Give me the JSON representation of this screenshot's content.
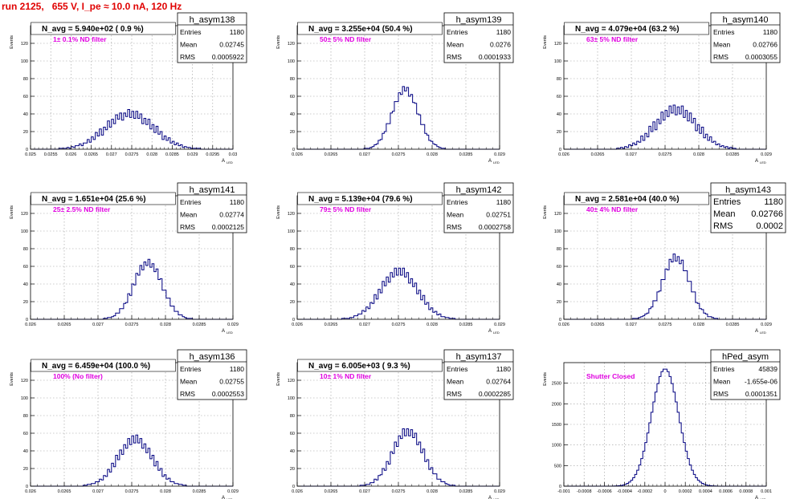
{
  "page_title": "run 2125,   655 V, I_pe ≈ 10.0 nA, 120 Hz",
  "colors": {
    "title": "#e00000",
    "annotation": "#e000e0",
    "histogram": "#000080",
    "axis": "#000000",
    "grid": "#9a9a9a"
  },
  "stat_labels": {
    "entries": "Entries",
    "mean": "Mean",
    "rms": "RMS"
  },
  "y_axis_label": "Events",
  "x_axis_label": "A",
  "x_axis_label_sub": "LED",
  "chart_data": [
    {
      "type": "bar",
      "name": "h_asym138",
      "header": "N_avg = 5.940e+02 ( 0.9 %)",
      "note": "1± 0.1% ND filter",
      "stats": {
        "entries": "1180",
        "mean": "0.02745",
        "rms": "0.0005922"
      },
      "xlim": [
        0.025,
        0.03
      ],
      "ylim": [
        0,
        140
      ],
      "x_ticks": [
        0.025,
        0.0255,
        0.026,
        0.0265,
        0.027,
        0.0275,
        0.028,
        0.0285,
        0.029,
        0.0295,
        0.03
      ],
      "x_tick_labels": [
        "0.025",
        "0.0255",
        "0.026",
        "0.0265",
        "0.027",
        "0.0275",
        "0.028",
        "0.0285",
        "0.029",
        "0.0295",
        "0.03"
      ],
      "y_ticks": [
        0,
        20,
        40,
        60,
        80,
        100,
        120
      ],
      "mean": 0.02745,
      "rms": 0.0005922,
      "peak": 40,
      "wiggle": [
        3,
        -4,
        5,
        -2,
        4,
        -5,
        2,
        -3,
        5,
        -4
      ]
    },
    {
      "type": "bar",
      "name": "h_asym139",
      "header": "N_avg = 3.255e+04 (50.4 %)",
      "note": "50± 5% ND filter",
      "stats": {
        "entries": "1180",
        "mean": "0.0276",
        "rms": "0.0001933"
      },
      "xlim": [
        0.026,
        0.029
      ],
      "ylim": [
        0,
        140
      ],
      "x_ticks": [
        0.026,
        0.0265,
        0.027,
        0.0275,
        0.028,
        0.0285,
        0.029
      ],
      "x_tick_labels": [
        "0.026",
        "0.0265",
        "0.027",
        "0.0275",
        "0.028",
        "0.0285",
        "0.029"
      ],
      "y_ticks": [
        0,
        20,
        40,
        60,
        80,
        100,
        120
      ],
      "mean": 0.0276,
      "rms": 0.0001933,
      "peak": 68,
      "wiggle": [
        2,
        -3,
        4,
        -2,
        3,
        -4,
        2,
        -2,
        3,
        -3
      ]
    },
    {
      "type": "bar",
      "name": "h_asym140",
      "header": "N_avg = 4.079e+04 (63.2 %)",
      "note": "63± 5% ND filter",
      "stats": {
        "entries": "1180",
        "mean": "0.02766",
        "rms": "0.0003055"
      },
      "xlim": [
        0.026,
        0.029
      ],
      "ylim": [
        0,
        140
      ],
      "x_ticks": [
        0.026,
        0.0265,
        0.027,
        0.0275,
        0.028,
        0.0285,
        0.029
      ],
      "x_tick_labels": [
        "0.026",
        "0.0265",
        "0.027",
        "0.0275",
        "0.028",
        "0.0285",
        "0.029"
      ],
      "y_ticks": [
        0,
        20,
        40,
        60,
        80,
        100,
        120
      ],
      "mean": 0.02766,
      "rms": 0.0003055,
      "peak": 45,
      "wiggle": [
        4,
        -5,
        6,
        -3,
        5,
        -6,
        3,
        -4,
        6,
        -5
      ]
    },
    {
      "type": "bar",
      "name": "h_asym141",
      "header": "N_avg = 1.651e+04 (25.6 %)",
      "note": "25± 2.5% ND filter",
      "stats": {
        "entries": "1180",
        "mean": "0.02774",
        "rms": "0.0002125"
      },
      "xlim": [
        0.026,
        0.029
      ],
      "ylim": [
        0,
        140
      ],
      "x_ticks": [
        0.026,
        0.0265,
        0.027,
        0.0275,
        0.028,
        0.0285,
        0.029
      ],
      "x_tick_labels": [
        "0.026",
        "0.0265",
        "0.027",
        "0.0275",
        "0.028",
        "0.0285",
        "0.029"
      ],
      "y_ticks": [
        0,
        20,
        40,
        60,
        80,
        100,
        120
      ],
      "mean": 0.02774,
      "rms": 0.0002125,
      "peak": 64,
      "wiggle": [
        3,
        -3,
        5,
        -2,
        4,
        -4,
        2,
        -3,
        4,
        -4
      ]
    },
    {
      "type": "bar",
      "name": "h_asym142",
      "header": "N_avg = 5.139e+04 (79.6 %)",
      "note": "79± 5% ND filter",
      "stats": {
        "entries": "1180",
        "mean": "0.02751",
        "rms": "0.0002758"
      },
      "xlim": [
        0.026,
        0.029
      ],
      "ylim": [
        0,
        140
      ],
      "x_ticks": [
        0.026,
        0.0265,
        0.027,
        0.0275,
        0.028,
        0.0285,
        0.029
      ],
      "x_tick_labels": [
        "0.026",
        "0.0265",
        "0.027",
        "0.0275",
        "0.028",
        "0.0285",
        "0.029"
      ],
      "y_ticks": [
        0,
        20,
        40,
        60,
        80,
        100,
        120
      ],
      "mean": 0.02751,
      "rms": 0.0002758,
      "peak": 54,
      "wiggle": [
        4,
        -4,
        5,
        -3,
        4,
        -5,
        3,
        -3,
        5,
        -4
      ]
    },
    {
      "type": "bar",
      "name": "h_asym143",
      "header": "N_avg = 2.581e+04 (40.0 %)",
      "note": "40± 4% ND filter",
      "stats": {
        "entries": "1180",
        "mean": "0.02766",
        "rms": "0.0002"
      },
      "stats_large": true,
      "xlim": [
        0.026,
        0.029
      ],
      "ylim": [
        0,
        140
      ],
      "x_ticks": [
        0.026,
        0.0265,
        0.027,
        0.0275,
        0.028,
        0.0285,
        0.029
      ],
      "x_tick_labels": [
        "0.026",
        "0.0265",
        "0.027",
        "0.0275",
        "0.028",
        "0.0285",
        "0.029"
      ],
      "y_ticks": [
        0,
        20,
        40,
        60,
        80,
        100,
        120
      ],
      "mean": 0.02766,
      "rms": 0.0002,
      "peak": 70,
      "wiggle": [
        3,
        -3,
        4,
        -2,
        5,
        -4,
        2,
        -3,
        4,
        -3
      ]
    },
    {
      "type": "bar",
      "name": "h_asym136",
      "header": "N_avg = 6.459e+04 (100.0 %)",
      "note": "100% (No filter)",
      "stats": {
        "entries": "1180",
        "mean": "0.02755",
        "rms": "0.0002553"
      },
      "xlim": [
        0.026,
        0.029
      ],
      "ylim": [
        0,
        140
      ],
      "x_ticks": [
        0.026,
        0.0265,
        0.027,
        0.0275,
        0.028,
        0.0285,
        0.029
      ],
      "x_tick_labels": [
        "0.026",
        "0.0265",
        "0.027",
        "0.0275",
        "0.028",
        "0.0285",
        "0.029"
      ],
      "y_ticks": [
        0,
        20,
        40,
        60,
        80,
        100,
        120
      ],
      "mean": 0.02755,
      "rms": 0.0002553,
      "peak": 53,
      "wiggle": [
        4,
        -4,
        5,
        -3,
        4,
        -5,
        3,
        -4,
        5,
        -4
      ]
    },
    {
      "type": "bar",
      "name": "h_asym137",
      "header": "N_avg = 6.005e+03 ( 9.3 %)",
      "note": "10± 1% ND filter",
      "stats": {
        "entries": "1180",
        "mean": "0.02764",
        "rms": "0.0002285"
      },
      "xlim": [
        0.026,
        0.029
      ],
      "ylim": [
        0,
        140
      ],
      "x_ticks": [
        0.026,
        0.0265,
        0.027,
        0.0275,
        0.028,
        0.0285,
        0.029
      ],
      "x_tick_labels": [
        "0.026",
        "0.0265",
        "0.027",
        "0.0275",
        "0.028",
        "0.0285",
        "0.029"
      ],
      "y_ticks": [
        0,
        20,
        40,
        60,
        80,
        100,
        120
      ],
      "mean": 0.02764,
      "rms": 0.0002285,
      "peak": 62,
      "wiggle": [
        4,
        -3,
        5,
        -4,
        3,
        -5,
        4,
        -3,
        5,
        -4
      ]
    },
    {
      "type": "bar",
      "name": "hPed_asym",
      "header": "",
      "note": "Shutter Closed",
      "stats": {
        "entries": "45839",
        "mean": "-1.655e-06",
        "rms": "0.0001351"
      },
      "xlim": [
        -0.001,
        0.001
      ],
      "ylim": [
        0,
        3000
      ],
      "x_ticks": [
        -0.001,
        -0.0008,
        -0.0006,
        -0.0004,
        -0.0002,
        0,
        0.0002,
        0.0004,
        0.0006,
        0.0008,
        0.001
      ],
      "x_tick_labels": [
        "-0.001",
        "-0.0008",
        "-0.0006",
        "-0.0004",
        "-0.0002",
        "0",
        "0.0002",
        "0.0004",
        "0.0006",
        "0.0008",
        "0.001"
      ],
      "y_ticks": [
        0,
        500,
        1000,
        1500,
        2000,
        2500
      ],
      "mean": 0,
      "rms": 0.0001351,
      "peak": 2850,
      "wiggle": [
        0,
        0,
        0,
        0,
        0,
        0,
        0,
        0,
        0,
        0
      ]
    }
  ]
}
